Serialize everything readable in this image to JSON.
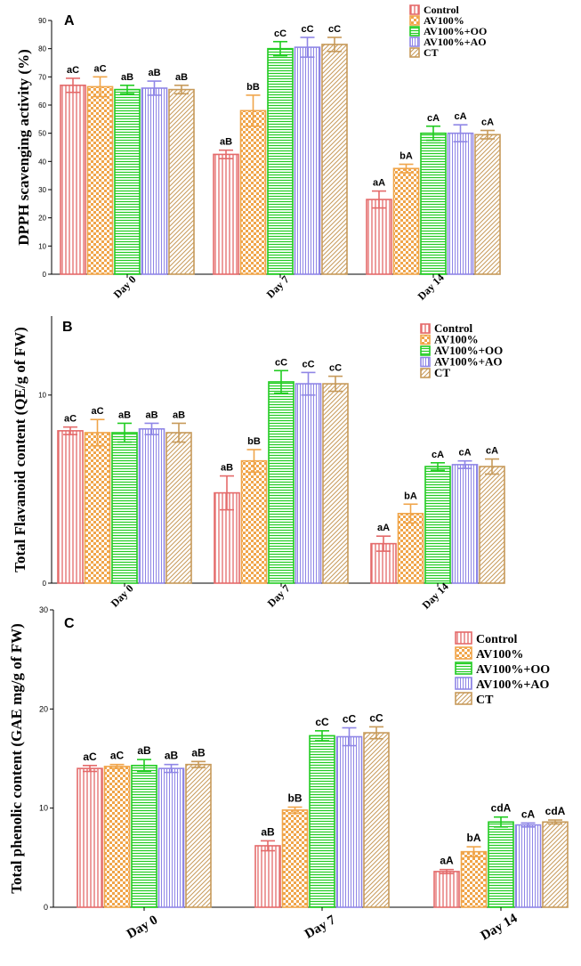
{
  "figure": {
    "legend_entries": [
      "Control",
      "AV100%",
      "AV100%+OO",
      "AV100%+AO",
      "CT"
    ],
    "colors": {
      "control": "#e46a6a",
      "av100": "#f0a54a",
      "oo": "#22cc22",
      "ao": "#8f86e6",
      "ct": "#c79a5a"
    }
  },
  "chart_data": [
    {
      "type": "bar",
      "panel": "A",
      "ylabel": "DPPH scavenging activity (%)",
      "categories": [
        "Day 0",
        "Day 7",
        "Day 14"
      ],
      "ylim": [
        0,
        90
      ],
      "yticks": [
        "0",
        "10",
        "20",
        "30",
        "40",
        "50",
        "60",
        "70",
        "80",
        "90"
      ],
      "series": [
        {
          "name": "Control",
          "values": [
            67,
            42.5,
            26.5
          ],
          "errors": [
            2.5,
            1.5,
            3
          ],
          "labels": [
            "aC",
            "aB",
            "aA"
          ]
        },
        {
          "name": "AV100%",
          "values": [
            66.5,
            58,
            37.5
          ],
          "errors": [
            3.5,
            5.5,
            1.5
          ],
          "labels": [
            "aC",
            "bB",
            "bA"
          ]
        },
        {
          "name": "AV100%+OO",
          "values": [
            65.5,
            80,
            50
          ],
          "errors": [
            1.5,
            2.5,
            2.5
          ],
          "labels": [
            "aB",
            "cC",
            "cA"
          ]
        },
        {
          "name": "AV100%+AO",
          "values": [
            66,
            80.5,
            50
          ],
          "errors": [
            2.5,
            3.5,
            3
          ],
          "labels": [
            "aB",
            "cC",
            "cA"
          ]
        },
        {
          "name": "CT",
          "values": [
            65.5,
            81.5,
            49.5
          ],
          "errors": [
            1.5,
            2.5,
            1.5
          ],
          "labels": [
            "aB",
            "cC",
            "cA"
          ]
        }
      ]
    },
    {
      "type": "bar",
      "panel": "B",
      "ylabel": "Total Flavanoid content (QE/g of FW)",
      "categories": [
        "Day 0",
        "Day 7",
        "Day 14"
      ],
      "ylim": [
        0,
        14.2
      ],
      "yticks": [
        "0",
        "10"
      ],
      "series": [
        {
          "name": "Control",
          "values": [
            8.1,
            4.8,
            2.1
          ],
          "errors": [
            0.2,
            0.9,
            0.4
          ],
          "labels": [
            "aC",
            "aB",
            "aA"
          ]
        },
        {
          "name": "AV100%",
          "values": [
            8.0,
            6.5,
            3.7
          ],
          "errors": [
            0.7,
            0.6,
            0.5
          ],
          "labels": [
            "aC",
            "bB",
            "bA"
          ]
        },
        {
          "name": "AV100%+OO",
          "values": [
            8.0,
            10.7,
            6.2
          ],
          "errors": [
            0.5,
            0.6,
            0.2
          ],
          "labels": [
            "aB",
            "cC",
            "cA"
          ]
        },
        {
          "name": "AV100%+AO",
          "values": [
            8.2,
            10.6,
            6.3
          ],
          "errors": [
            0.3,
            0.6,
            0.2
          ],
          "labels": [
            "aB",
            "cC",
            "cA"
          ]
        },
        {
          "name": "CT",
          "values": [
            8.0,
            10.6,
            6.2
          ],
          "errors": [
            0.5,
            0.4,
            0.4
          ],
          "labels": [
            "aB",
            "cC",
            "cA"
          ]
        }
      ]
    },
    {
      "type": "bar",
      "panel": "C",
      "ylabel": "Total phenolic content (GAE mg/g of FW)",
      "categories": [
        "Day 0",
        "Day 7",
        "Day 14"
      ],
      "ylim": [
        0,
        30
      ],
      "yticks": [
        "0",
        "10",
        "20",
        "30"
      ],
      "series": [
        {
          "name": "Control",
          "values": [
            14.0,
            6.2,
            3.6
          ],
          "errors": [
            0.3,
            0.5,
            0.2
          ],
          "labels": [
            "aC",
            "aB",
            "aA"
          ]
        },
        {
          "name": "AV100%",
          "values": [
            14.2,
            9.8,
            5.6
          ],
          "errors": [
            0.2,
            0.3,
            0.5
          ],
          "labels": [
            "aC",
            "bB",
            "bA"
          ]
        },
        {
          "name": "AV100%+OO",
          "values": [
            14.3,
            17.3,
            8.6
          ],
          "errors": [
            0.6,
            0.5,
            0.5
          ],
          "labels": [
            "aB",
            "cC",
            "cdA"
          ]
        },
        {
          "name": "AV100%+AO",
          "values": [
            14.0,
            17.2,
            8.3
          ],
          "errors": [
            0.4,
            0.9,
            0.2
          ],
          "labels": [
            "aB",
            "cC",
            "cA"
          ]
        },
        {
          "name": "CT",
          "values": [
            14.4,
            17.6,
            8.6
          ],
          "errors": [
            0.3,
            0.6,
            0.2
          ],
          "labels": [
            "aB",
            "cC",
            "cdA"
          ]
        }
      ]
    }
  ]
}
